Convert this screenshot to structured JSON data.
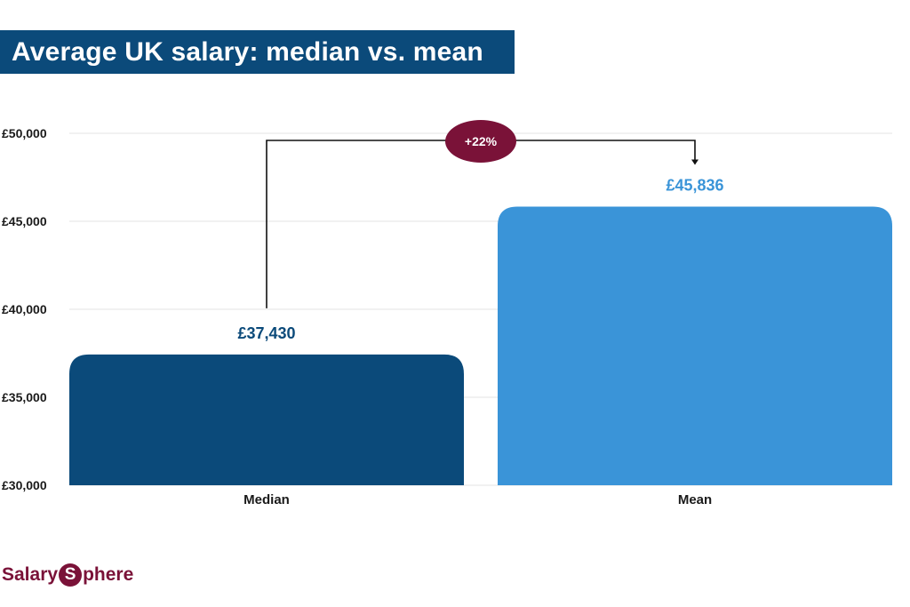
{
  "header": {
    "title": "Average UK salary: median vs. mean"
  },
  "chart_data": {
    "type": "bar",
    "title": "Average UK salary: median vs. mean",
    "xlabel": "",
    "ylabel": "",
    "categories": [
      "Median",
      "Mean"
    ],
    "values": [
      37430,
      45836
    ],
    "value_labels": [
      "£37,430",
      "£45,836"
    ],
    "ylim": [
      30000,
      50000
    ],
    "yticks": [
      30000,
      35000,
      40000,
      45000,
      50000
    ],
    "ytick_labels": [
      "£30,000",
      "£35,000",
      "£40,000",
      "£45,000",
      "£50,000"
    ],
    "grid": true,
    "legend": "none",
    "annotation": {
      "label": "+22%",
      "from": "Median",
      "to": "Mean"
    },
    "colors": {
      "Median": "#0b4a7a",
      "Mean": "#3a94d8",
      "annotation": "#7a1238",
      "grid": "#e3e3e3"
    }
  },
  "branding": {
    "logo_part1": "Salary",
    "logo_badge": "S",
    "logo_part2": "phere"
  }
}
